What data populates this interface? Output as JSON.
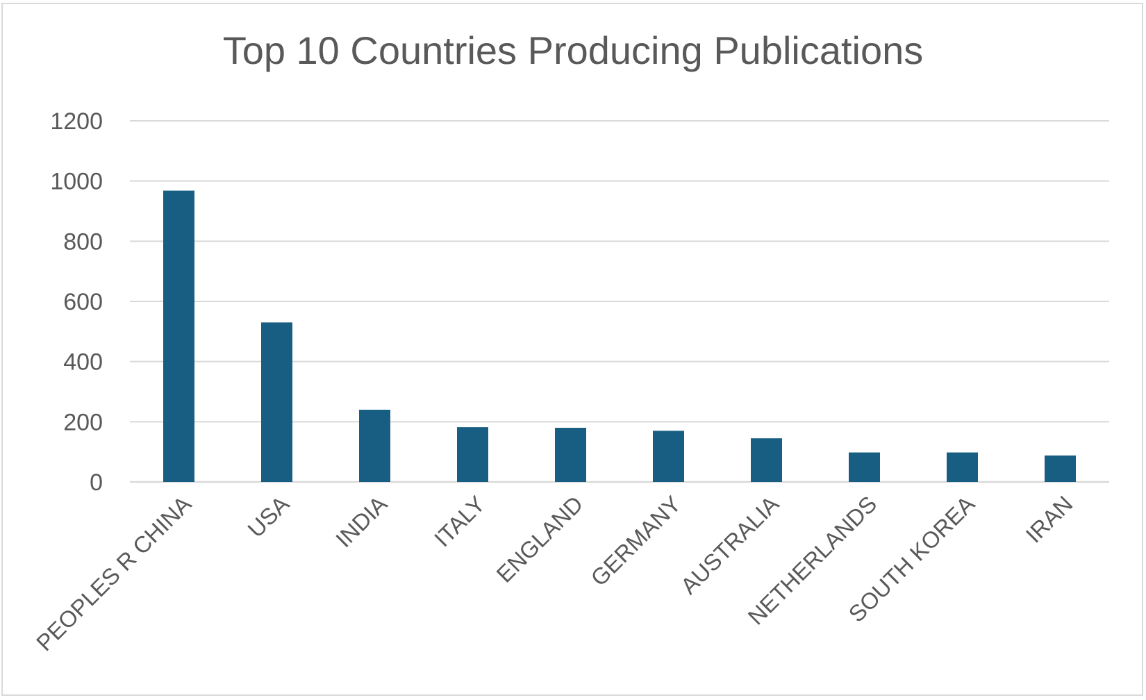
{
  "chart_data": {
    "type": "bar",
    "title": "Top 10 Countries Producing Publications",
    "xlabel": "",
    "ylabel": "",
    "categories": [
      "PEOPLES R CHINA",
      "USA",
      "INDIA",
      "ITALY",
      "ENGLAND",
      "GERMANY",
      "AUSTRALIA",
      "NETHERLANDS",
      "SOUTH KOREA",
      "IRAN"
    ],
    "values": [
      968,
      530,
      240,
      182,
      180,
      170,
      145,
      98,
      98,
      88
    ],
    "ylim": [
      0,
      1200
    ],
    "yticks": [
      "0",
      "200",
      "400",
      "600",
      "800",
      "1000",
      "1200"
    ],
    "grid": true,
    "legend": "none",
    "bar_color": "#175e82",
    "grid_color": "#d9d9d9"
  }
}
